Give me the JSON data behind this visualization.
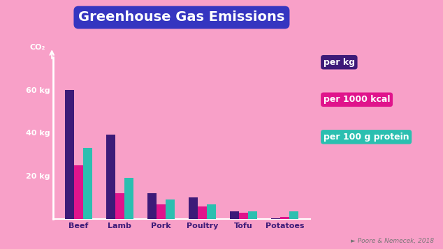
{
  "title": "Greenhouse Gas Emissions",
  "categories": [
    "Beef",
    "Lamb",
    "Pork",
    "Poultry",
    "Tofu",
    "Potatoes"
  ],
  "per_kg": [
    60,
    39,
    12,
    10,
    3.5,
    0.5
  ],
  "per_1000kcal": [
    25,
    12,
    7,
    6,
    3.0,
    1.0
  ],
  "per_100g_pro": [
    33,
    19,
    9,
    7,
    3.5,
    3.5
  ],
  "color_kg": "#3d1a78",
  "color_kcal": "#e0148c",
  "color_protein": "#2bbfb0",
  "background": "#f8a0c8",
  "title_bg": "#3535c0",
  "title_color": "#ffffff",
  "ylabel": "CO₂",
  "yticks": [
    20,
    40,
    60
  ],
  "ytick_labels": [
    "20 kg",
    "40 kg",
    "60 kg"
  ],
  "source": "Poore & Nemecek, 2018",
  "legend_labels": [
    "per kg",
    "per 1000 kcal",
    "per 100 g protein"
  ],
  "legend_colors": [
    "#3d1a78",
    "#e0148c",
    "#2bbfb0"
  ],
  "bar_width": 0.22,
  "ylim": [
    0,
    75
  ],
  "figsize": [
    6.34,
    3.57
  ],
  "dpi": 100
}
